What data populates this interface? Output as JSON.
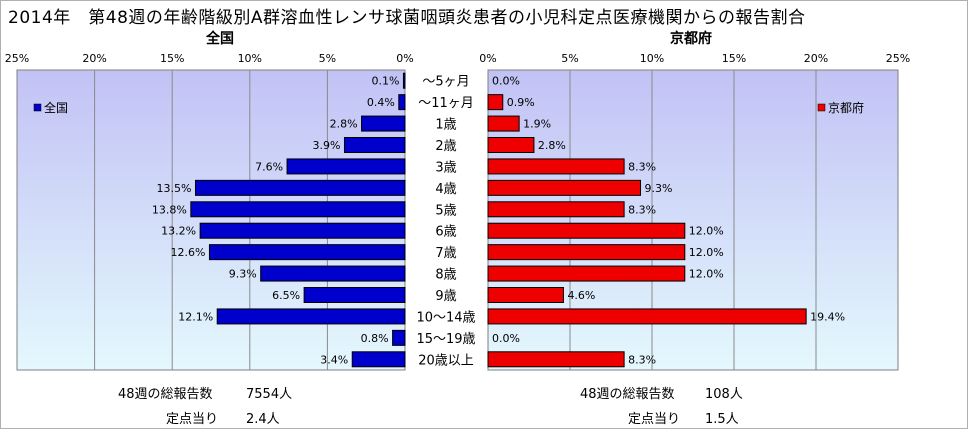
{
  "title": "2014年　第48週の年齢階級別A群溶血性レンサ球菌咽頭炎患者の小児科定点医療機関からの報告割合",
  "chart_data": {
    "type": "bar",
    "orientation": "horizontal-butterfly",
    "categories": [
      "～5ヶ月",
      "～11ヶ月",
      "1歳",
      "2歳",
      "3歳",
      "4歳",
      "5歳",
      "6歳",
      "7歳",
      "8歳",
      "9歳",
      "10～14歳",
      "15～19歳",
      "20歳以上"
    ],
    "panels": [
      {
        "title": "全国",
        "legend": "全国",
        "legend_position": "top-left",
        "direction": "left",
        "color": "#0000CC",
        "xlim": [
          0,
          25
        ],
        "ticks": [
          "25%",
          "20%",
          "15%",
          "10%",
          "5%",
          "0%"
        ],
        "values": [
          0.1,
          0.4,
          2.8,
          3.9,
          7.6,
          13.5,
          13.8,
          13.2,
          12.6,
          9.3,
          6.5,
          12.1,
          0.8,
          3.4
        ],
        "labels": [
          "0.1%",
          "0.4%",
          "2.8%",
          "3.9%",
          "7.6%",
          "13.5%",
          "13.8%",
          "13.2%",
          "12.6%",
          "9.3%",
          "6.5%",
          "12.1%",
          "0.8%",
          "3.4%"
        ],
        "footer": {
          "total_label": "48週の総報告数",
          "total_value": "7554人",
          "per_label": "定点当り",
          "per_value": "2.4人"
        }
      },
      {
        "title": "京都府",
        "legend": "京都府",
        "legend_position": "top-right",
        "direction": "right",
        "color": "#EE0000",
        "xlim": [
          0,
          25
        ],
        "ticks": [
          "0%",
          "5%",
          "10%",
          "15%",
          "20%",
          "25%"
        ],
        "values": [
          0.0,
          0.9,
          1.9,
          2.8,
          8.3,
          9.3,
          8.3,
          12.0,
          12.0,
          12.0,
          4.6,
          19.4,
          0.0,
          8.3
        ],
        "labels": [
          "0.0%",
          "0.9%",
          "1.9%",
          "2.8%",
          "8.3%",
          "9.3%",
          "8.3%",
          "12.0%",
          "12.0%",
          "12.0%",
          "4.6%",
          "19.4%",
          "0.0%",
          "8.3%"
        ],
        "footer": {
          "total_label": "48週の総報告数",
          "total_value": "108人",
          "per_label": "定点当り",
          "per_value": "1.5人"
        }
      }
    ],
    "grid": true
  }
}
